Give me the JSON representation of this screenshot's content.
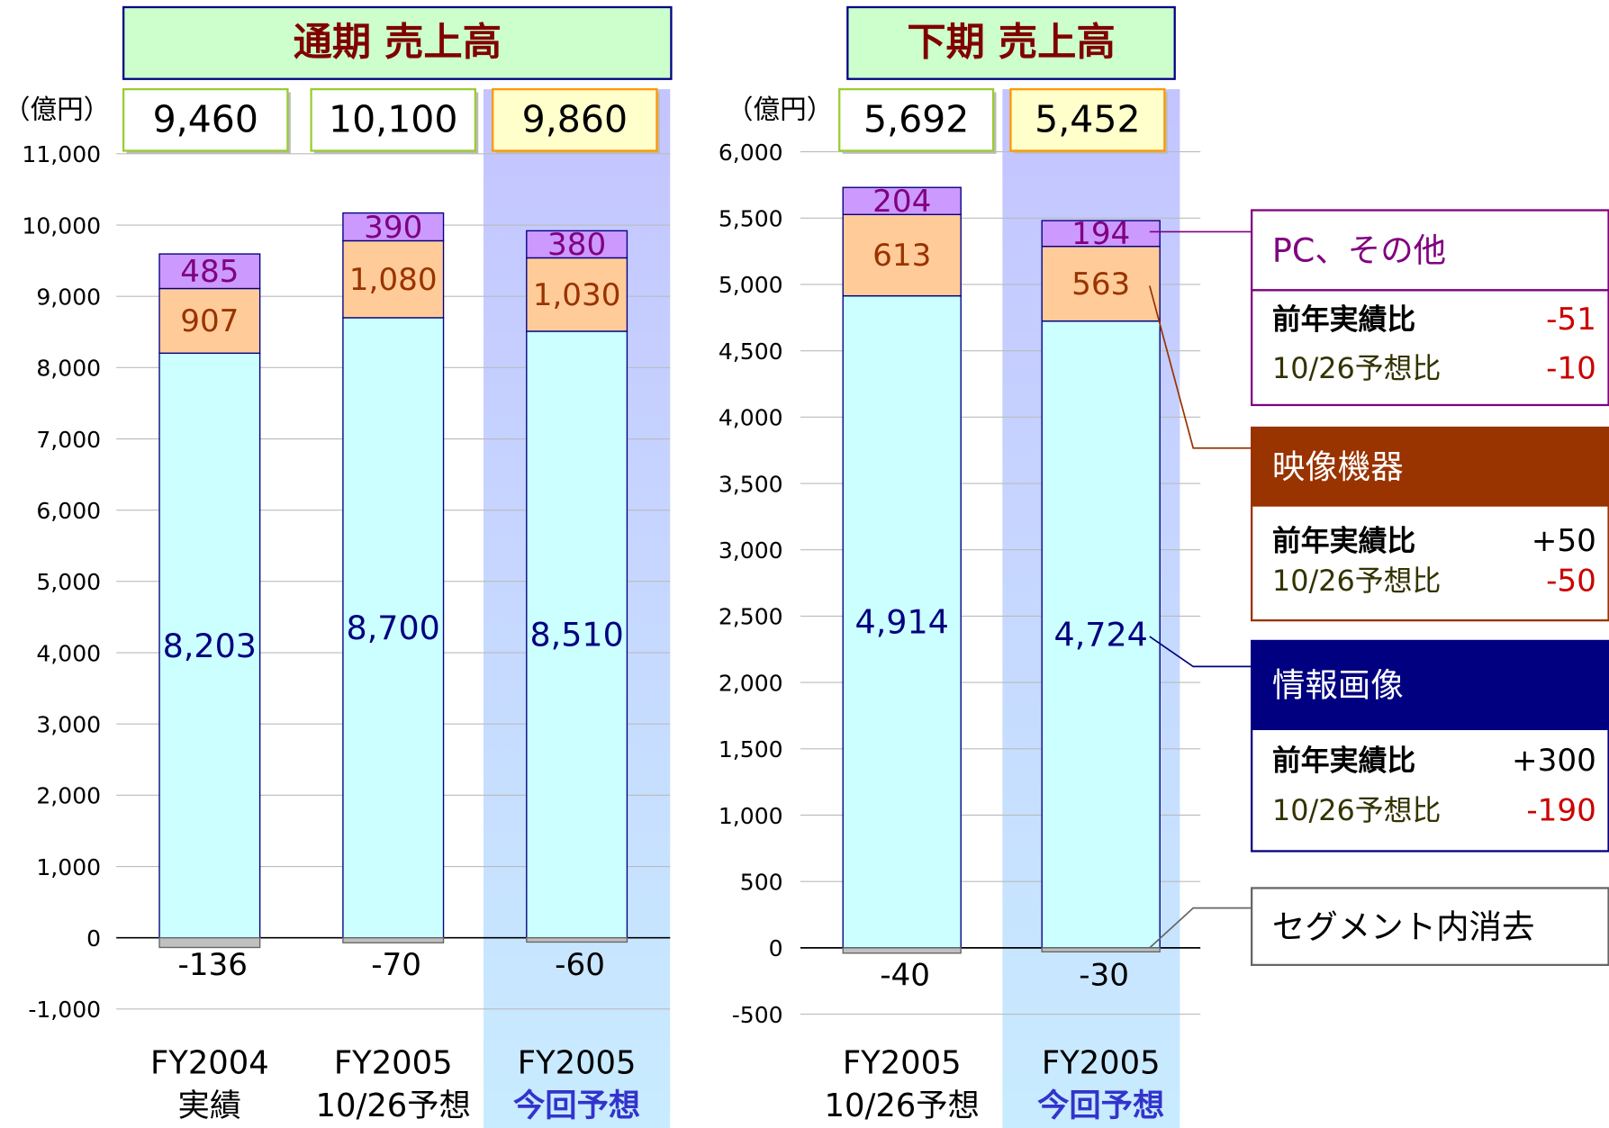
{
  "chart_data": [
    {
      "type": "stacked-bar",
      "title": "通期  売上高",
      "unit": "（億円）",
      "categories": [
        [
          "FY2004",
          "実績"
        ],
        [
          "FY2005",
          "10/26予想"
        ],
        [
          "FY2005",
          "今回予想"
        ]
      ],
      "highlight_category": 2,
      "totals": [
        9460,
        10100,
        9860
      ],
      "total_labels": [
        "9,460",
        "10,100",
        "9,860"
      ],
      "series": [
        {
          "color": "#ccffff",
          "text_color": "#000080",
          "values": [
            8203,
            8700,
            8510
          ],
          "value_labels": [
            "8,203",
            "8,700",
            "8,510"
          ]
        },
        {
          "color": "#ffcc99",
          "text_color": "#993300",
          "values": [
            907,
            1080,
            1030
          ],
          "value_labels": [
            "907",
            "1,080",
            "1,030"
          ]
        },
        {
          "color": "#cc99ff",
          "text_color": "#800080",
          "values": [
            485,
            390,
            380
          ]
        },
        {
          "color": "#c0c0c0",
          "text_color": "#000000",
          "values": [
            -136,
            -70,
            -60
          ]
        }
      ],
      "ylim": [
        -1000,
        11000
      ],
      "yticks": [
        {
          "value": -1000,
          "label": "-1,000"
        },
        0,
        {
          "value": 1000,
          "label": "1,000"
        },
        {
          "value": 2000,
          "label": "2,000"
        },
        {
          "value": 3000,
          "label": "3,000"
        },
        {
          "value": 4000,
          "label": "4,000"
        },
        {
          "value": 5000,
          "label": "5,000"
        },
        {
          "value": 6000,
          "label": "6,000"
        },
        {
          "value": 7000,
          "label": "7,000"
        },
        {
          "value": 8000,
          "label": "8,000"
        },
        {
          "value": 9000,
          "label": "9,000"
        },
        {
          "value": 10000,
          "label": "10,000"
        },
        {
          "value": 11000,
          "label": "11,000"
        }
      ],
      "grid": true
    },
    {
      "type": "stacked-bar",
      "title": "下期  売上高",
      "unit": "（億円）",
      "categories": [
        [
          "FY2005",
          "10/26予想"
        ],
        [
          "FY2005",
          "今回予想"
        ]
      ],
      "highlight_category": 1,
      "totals": [
        5692,
        5452
      ],
      "total_labels": [
        "5,692",
        "5,452"
      ],
      "series": [
        {
          "color": "#ccffff",
          "text_color": "#000080",
          "values": [
            4914,
            4724
          ],
          "value_labels": [
            "4,914",
            "4,724"
          ]
        },
        {
          "color": "#ffcc99",
          "text_color": "#993300",
          "values": [
            613,
            563
          ]
        },
        {
          "color": "#cc99ff",
          "text_color": "#800080",
          "values": [
            204,
            194
          ]
        },
        {
          "color": "#c0c0c0",
          "text_color": "#000000",
          "values": [
            -40,
            -30
          ]
        }
      ],
      "ylim": [
        -500,
        6000
      ],
      "yticks": [
        -500,
        0,
        500,
        {
          "value": 1000,
          "label": "1,000"
        },
        {
          "value": 1500,
          "label": "1,500"
        },
        {
          "value": 2000,
          "label": "2,000"
        },
        {
          "value": 2500,
          "label": "2,500"
        },
        {
          "value": 3000,
          "label": "3,000"
        },
        {
          "value": 3500,
          "label": "3,500"
        },
        {
          "value": 4000,
          "label": "4,000"
        },
        {
          "value": 4500,
          "label": "4,500"
        },
        {
          "value": 5000,
          "label": "5,000"
        },
        {
          "value": 5500,
          "label": "5,500"
        },
        {
          "value": 6000,
          "label": "6,000"
        }
      ],
      "grid": true
    }
  ],
  "legend": [
    {
      "name": "PC、その他",
      "rows": [
        [
          "前年実績比",
          -51
        ],
        [
          "10/26予想比",
          -10
        ]
      ]
    },
    {
      "name": "映像機器",
      "rows": [
        [
          "前年実績比",
          {
            "value": 50,
            "label": "+50"
          }
        ],
        [
          "10/26予想比",
          -50
        ]
      ]
    },
    {
      "name": "情報画像",
      "rows": [
        [
          "前年実績比",
          {
            "value": 300,
            "label": "+300"
          }
        ],
        [
          "10/26予想比",
          -190
        ]
      ]
    },
    {
      "name": "セグメント内消去"
    }
  ]
}
